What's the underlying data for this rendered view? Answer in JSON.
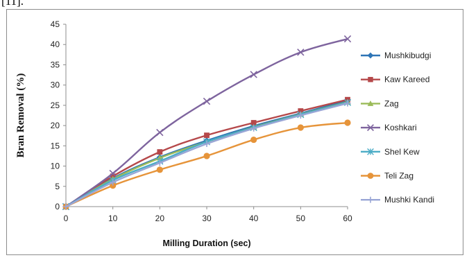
{
  "page": {
    "caption": "[11]."
  },
  "chart_data": {
    "type": "line",
    "title": "",
    "xlabel": "Milling Duration (sec)",
    "ylabel": "Bran Removal (%)",
    "x": [
      0,
      10,
      20,
      30,
      40,
      50,
      60
    ],
    "xlim": [
      0,
      60
    ],
    "ylim": [
      0,
      45
    ],
    "yticks": [
      0,
      5,
      10,
      15,
      20,
      25,
      30,
      35,
      40,
      45
    ],
    "grid": false,
    "legend": "right",
    "series": [
      {
        "name": "Mushkibudgi",
        "color": "#2e75b6",
        "marker": "diamond",
        "values": [
          0,
          7.0,
          12.2,
          16.3,
          19.9,
          23.0,
          26.2
        ]
      },
      {
        "name": "Kaw Kareed",
        "color": "#b5484a",
        "marker": "square",
        "values": [
          0,
          7.5,
          13.5,
          17.6,
          20.7,
          23.6,
          26.4
        ]
      },
      {
        "name": "Zag",
        "color": "#9bbb59",
        "marker": "triangle",
        "values": [
          0,
          6.8,
          12.0,
          16.0,
          19.6,
          22.8,
          25.8
        ]
      },
      {
        "name": "Koshkari",
        "color": "#7e649e",
        "marker": "x",
        "values": [
          0,
          8.2,
          18.3,
          26.0,
          32.6,
          38.1,
          41.4
        ]
      },
      {
        "name": "Shel Kew",
        "color": "#4bacc6",
        "marker": "star",
        "values": [
          0,
          6.5,
          11.2,
          16.0,
          19.5,
          22.7,
          25.7
        ]
      },
      {
        "name": "Teli Zag",
        "color": "#e6943a",
        "marker": "circle",
        "values": [
          0,
          5.2,
          9.1,
          12.5,
          16.5,
          19.5,
          20.7
        ]
      },
      {
        "name": "Mushki Kandi",
        "color": "#9aa6d6",
        "marker": "plus",
        "values": [
          0,
          6.0,
          10.8,
          15.5,
          19.3,
          22.5,
          25.5
        ]
      }
    ]
  }
}
